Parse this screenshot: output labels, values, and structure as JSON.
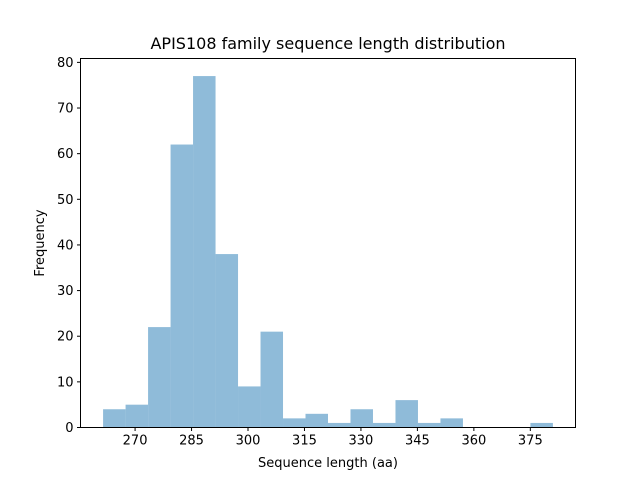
{
  "chart_data": {
    "type": "bar",
    "subtype": "histogram",
    "title": "APIS108 family sequence length distribution",
    "xlabel": "Sequence length (aa)",
    "ylabel": "Frequency",
    "bin_range": [
      261.5,
      381
    ],
    "counts": [
      4,
      5,
      22,
      62,
      77,
      38,
      9,
      21,
      2,
      3,
      1,
      4,
      1,
      6,
      1,
      2,
      0,
      0,
      0,
      1
    ],
    "xlim": [
      255.5,
      387
    ],
    "ylim": [
      0,
      80.85
    ],
    "xticks": [
      270,
      285,
      300,
      315,
      330,
      345,
      360,
      375
    ],
    "yticks": [
      0,
      10,
      20,
      30,
      40,
      50,
      60,
      70,
      80
    ],
    "grid": false,
    "bar_color": "#8fbbd9"
  }
}
